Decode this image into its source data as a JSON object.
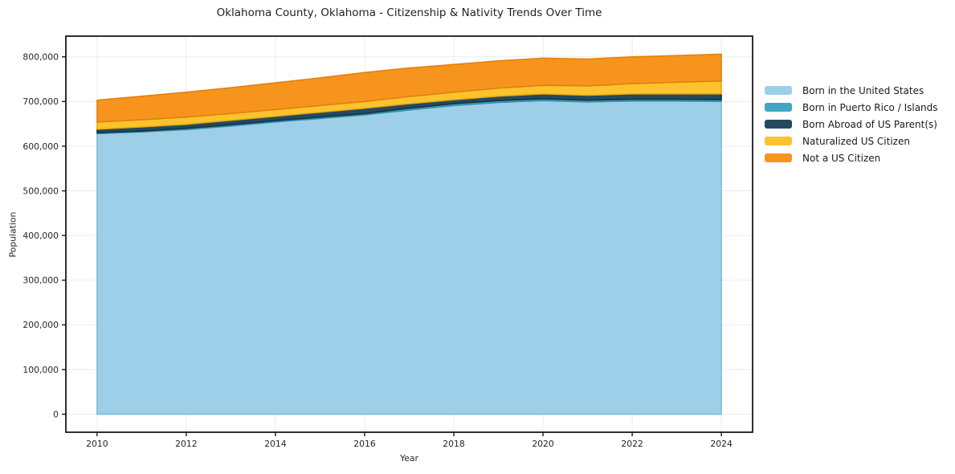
{
  "chart_data": {
    "type": "area",
    "stacked": true,
    "title": "Oklahoma County, Oklahoma - Citizenship & Nativity Trends Over Time",
    "xlabel": "Year",
    "ylabel": "Population",
    "x": [
      2010,
      2011,
      2012,
      2013,
      2014,
      2015,
      2016,
      2017,
      2018,
      2019,
      2020,
      2021,
      2022,
      2023,
      2024
    ],
    "series": [
      {
        "name": "Born in the United States",
        "color": "#9ecfe8",
        "edge": "#7cb8d8",
        "values": [
          628000,
          632000,
          637000,
          645000,
          654000,
          662000,
          670000,
          681000,
          691000,
          698000,
          702000,
          699000,
          701000,
          701000,
          700000
        ]
      },
      {
        "name": "Born in Puerto Rico / Islands",
        "color": "#3fa8c4",
        "edge": "#2f8fab",
        "values": [
          2000,
          2000,
          3000,
          3000,
          3000,
          3000,
          3000,
          4000,
          4000,
          4000,
          4000,
          4000,
          4000,
          4000,
          4000
        ]
      },
      {
        "name": "Born Abroad of US Parent(s)",
        "color": "#25495e",
        "edge": "#152f40",
        "values": [
          8000,
          9000,
          9000,
          10000,
          10000,
          11000,
          12000,
          10000,
          9000,
          10000,
          11000,
          11000,
          12000,
          12000,
          13000
        ]
      },
      {
        "name": "Naturalized US Citizen",
        "color": "#fcc32d",
        "edge": "#e9a918",
        "values": [
          16000,
          16000,
          16000,
          15000,
          15000,
          15000,
          15000,
          16000,
          17000,
          18000,
          19000,
          21000,
          23000,
          26000,
          29000
        ]
      },
      {
        "name": "Not a US Citizen",
        "color": "#f7941d",
        "edge": "#e17f0c",
        "values": [
          49000,
          53000,
          56000,
          58000,
          60000,
          62000,
          65000,
          64000,
          62000,
          61000,
          61000,
          60000,
          60000,
          60000,
          60000
        ]
      }
    ],
    "xlim": [
      2009.3,
      2024.7
    ],
    "ylim": [
      -40300,
      846300
    ],
    "xticks": [
      {
        "v": 2010,
        "label": "2010"
      },
      {
        "v": 2012,
        "label": "2012"
      },
      {
        "v": 2014,
        "label": "2014"
      },
      {
        "v": 2016,
        "label": "2016"
      },
      {
        "v": 2018,
        "label": "2018"
      },
      {
        "v": 2020,
        "label": "2020"
      },
      {
        "v": 2022,
        "label": "2022"
      },
      {
        "v": 2024,
        "label": "2024"
      }
    ],
    "yticks": [
      {
        "v": 0,
        "label": "0"
      },
      {
        "v": 100000,
        "label": "100,000"
      },
      {
        "v": 200000,
        "label": "200,000"
      },
      {
        "v": 300000,
        "label": "300,000"
      },
      {
        "v": 400000,
        "label": "400,000"
      },
      {
        "v": 500000,
        "label": "500,000"
      },
      {
        "v": 600000,
        "label": "600,000"
      },
      {
        "v": 700000,
        "label": "700,000"
      },
      {
        "v": 800000,
        "label": "800,000"
      }
    ],
    "grid": true,
    "grid_color": "#ebebeb",
    "spine_color": "#1a1a1a",
    "legend_position": "right"
  }
}
